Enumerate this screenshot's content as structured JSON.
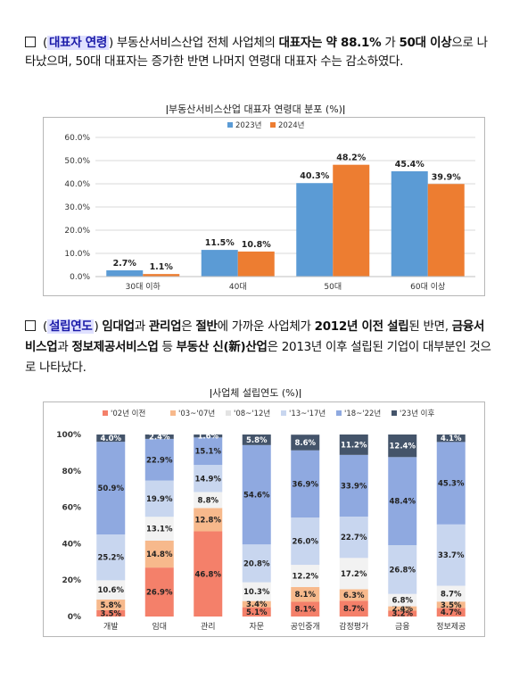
{
  "para1": {
    "bullet": "□",
    "s1": "(",
    "hl": "대표자 연령",
    "s2": ") 부동산서비스산업 전체 사업체의 ",
    "b1": "대표자는 약 88.1%",
    "s3": " 가 ",
    "b2": "50대 이상",
    "s4": "으로 나타났으며, 50대 대표자는 증가한 반면 나머지 연령대 대표자 수는 감소하였다."
  },
  "para2": {
    "bullet": "□",
    "s1": "(",
    "hl": "설립연도",
    "s2": ") ",
    "b1": "임대업",
    "s3": "과 ",
    "b2": "관리업",
    "s4": "은 ",
    "b3": "절반",
    "s5": "에 가까운 사업체가 ",
    "b4": "2012년 이전 설립",
    "s6": "된 반면, ",
    "b5": "금융서비스업",
    "s7": "과 ",
    "b6": "정보제공서비스업",
    "s8": " 등 ",
    "b7": "부동산 신(新)산업",
    "s9": "은 2013년 이후 설립된 기업이 대부분인 것으로 나타났다."
  },
  "chart_data": [
    {
      "type": "bar",
      "title": "부동산서비스산업 대표자 연령대 분포 (%)",
      "categories": [
        "30대 이하",
        "40대",
        "50대",
        "60대 이상"
      ],
      "series": [
        {
          "name": "2023년",
          "values": [
            2.7,
            11.5,
            40.3,
            45.4
          ],
          "color": "#5b9bd5"
        },
        {
          "name": "2024년",
          "values": [
            1.1,
            10.8,
            48.2,
            39.9
          ],
          "color": "#ed7d31"
        }
      ],
      "ylim": [
        0,
        60
      ],
      "yticks": [
        "0.0%",
        "10.0%",
        "20.0%",
        "30.0%",
        "40.0%",
        "50.0%",
        "60.0%"
      ],
      "legend": "top",
      "grid": true
    },
    {
      "type": "bar",
      "stacked": true,
      "title": "사업체 설립연도 (%)",
      "categories": [
        "개발",
        "임대",
        "관리",
        "자문",
        "공인중개",
        "감정평가",
        "금융",
        "정보제공"
      ],
      "series": [
        {
          "name": "'02년 이전",
          "color": "#f4806a",
          "values": [
            3.5,
            26.9,
            46.8,
            5.1,
            8.1,
            8.7,
            3.2,
            4.7
          ]
        },
        {
          "name": "'03~'07년",
          "color": "#f7b98c",
          "values": [
            5.8,
            14.8,
            12.8,
            3.4,
            8.1,
            6.3,
            2.4,
            3.5
          ]
        },
        {
          "name": "'08~'12년",
          "color": "#f2f2f2",
          "values": [
            10.6,
            13.1,
            8.8,
            10.3,
            12.2,
            17.2,
            6.8,
            8.7
          ]
        },
        {
          "name": "'13~'17년",
          "color": "#c8d6ef",
          "values": [
            25.2,
            19.9,
            14.9,
            20.8,
            26.0,
            22.7,
            26.8,
            33.7
          ]
        },
        {
          "name": "'18~'22년",
          "color": "#8fa9e0",
          "values": [
            50.9,
            22.9,
            15.1,
            54.6,
            36.9,
            33.9,
            48.4,
            45.3
          ]
        },
        {
          "name": "'23년 이후",
          "color": "#44546a",
          "values": [
            4.0,
            2.4,
            1.6,
            5.8,
            8.6,
            11.2,
            12.4,
            4.1
          ]
        }
      ],
      "ylim": [
        0,
        100
      ],
      "yticks": [
        "0%",
        "20%",
        "40%",
        "60%",
        "80%",
        "100%"
      ],
      "legend": "top",
      "grid": false
    }
  ]
}
